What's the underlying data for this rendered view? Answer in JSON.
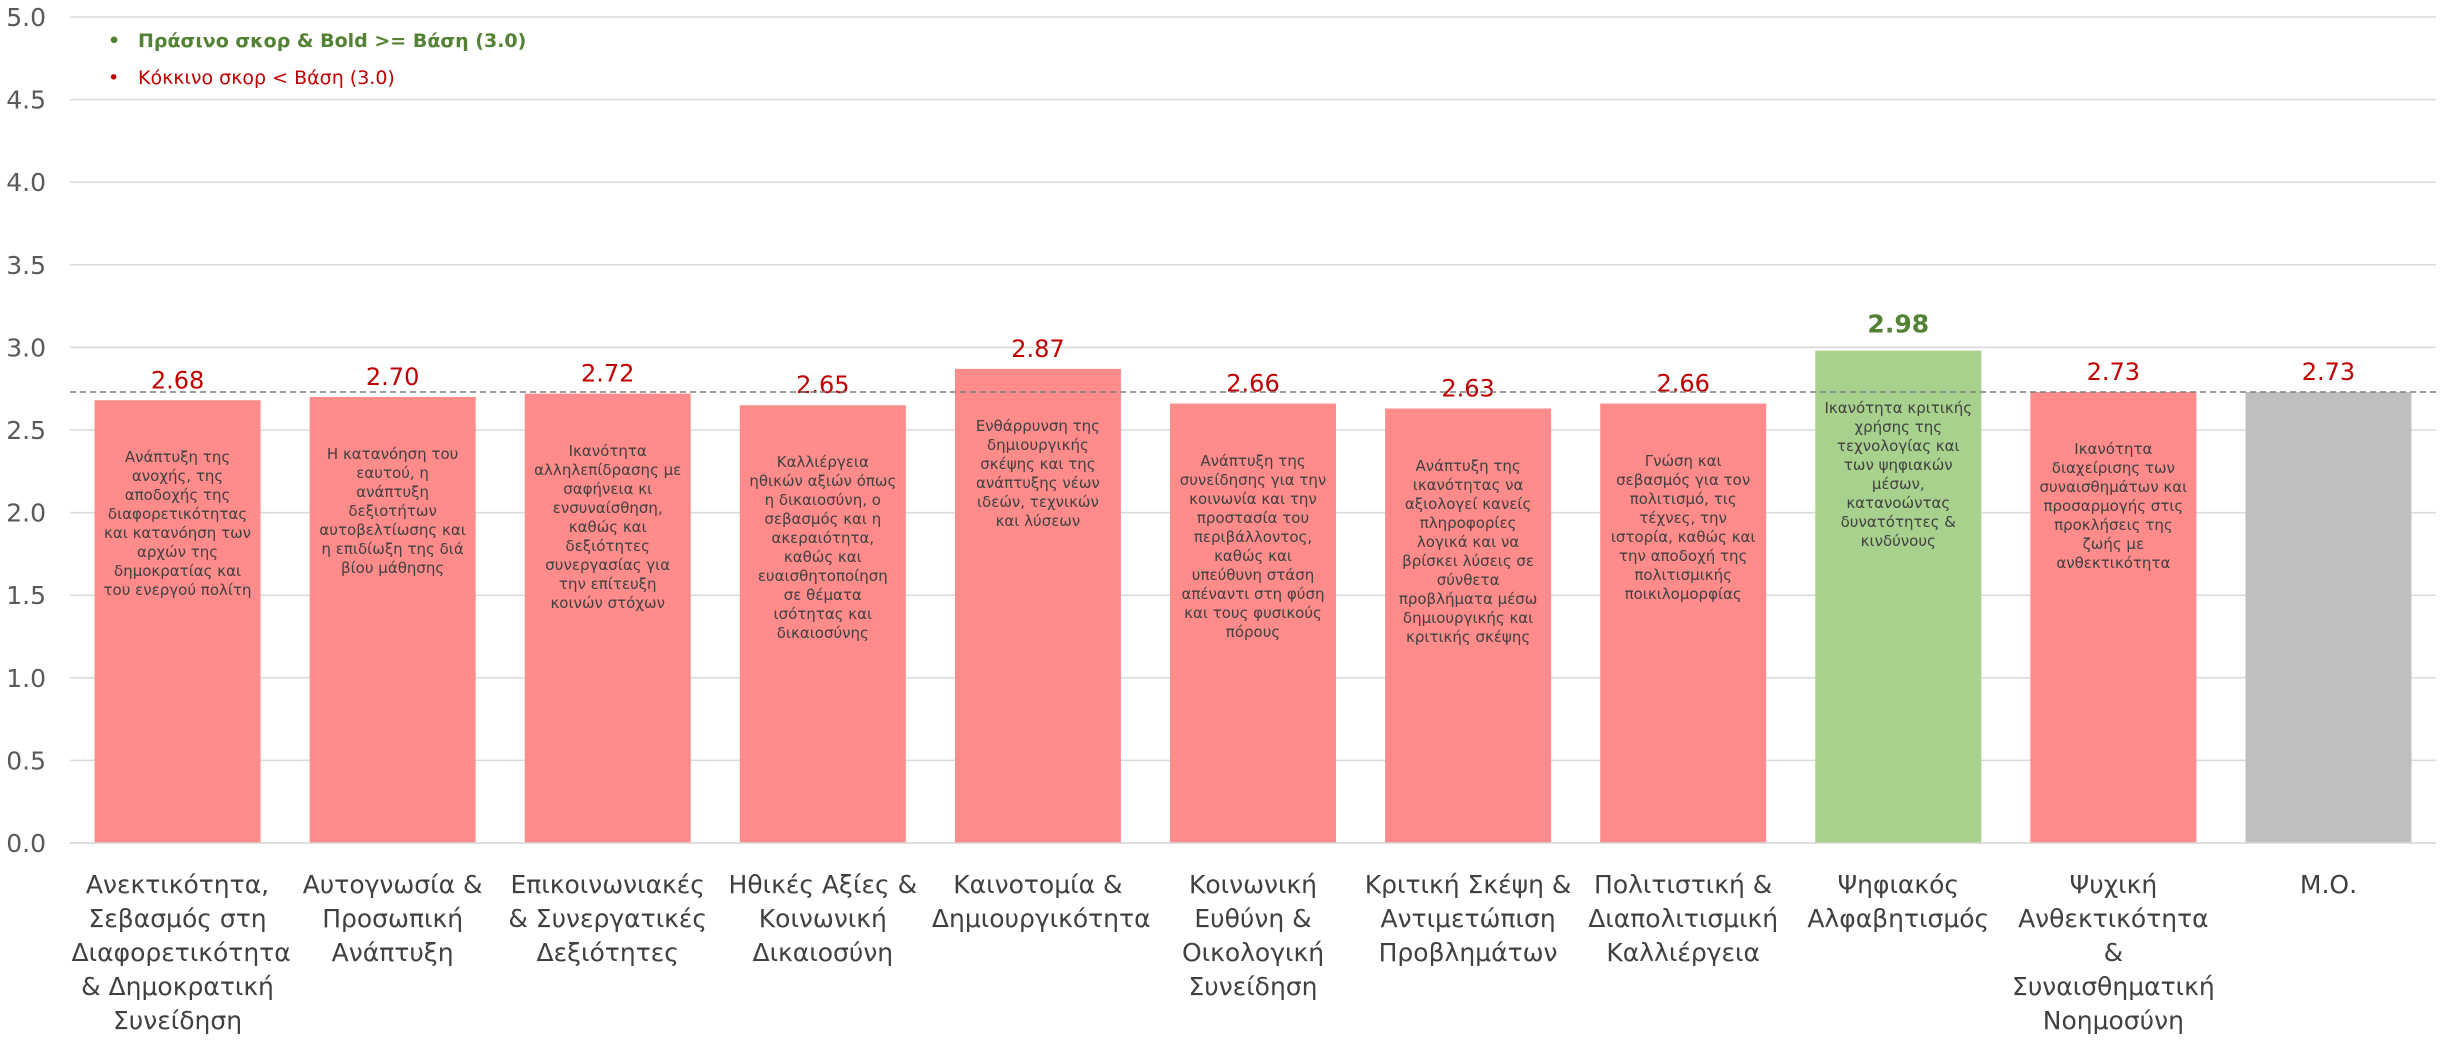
{
  "chart_data": {
    "type": "bar",
    "legend": [
      "Πράσινο σκορ & Bold >= Βάση (3.0)",
      "Κόκκινο σκορ < Βάση (3.0)"
    ],
    "legend_colors": [
      "#548235",
      "#c00000"
    ],
    "categories": [
      "Ανεκτικότητα, Σεβασμός στη Διαφορετικότητα & Δημοκρατική Συνείδηση",
      "Αυτογνωσία & Προσωπική Ανάπτυξη",
      "Επικοινωνιακές & Συνεργατικές Δεξιότητες",
      "Ηθικές Αξίες & Κοινωνική Δικαιοσύνη",
      "Καινοτομία & Δημιουργικότητα",
      "Κοινωνική Ευθύνη & Οικολογική Συνείδηση",
      "Κριτική Σκέψη & Αντιμετώπιση Προβλημάτων",
      "Πολιτιστική & Διαπολιτισμική Καλλιέργεια",
      "Ψηφιακός Αλφαβητισμός",
      "Ψυχική Ανθεκτικότητα & Συναισθηματική Νοημοσύνη",
      "Μ.Ο."
    ],
    "descriptions": [
      "Ανάπτυξη της ανοχής, της αποδοχής της διαφορετικότητας και κατανόηση των αρχών της δημοκρατίας και του ενεργού πολίτη",
      "Η κατανόηση του εαυτού, η ανάπτυξη δεξιοτήτων αυτοβελτίωσης και η επιδίωξη της διά βίου μάθησης",
      "Ικανότητα αλληλεπίδρασης με σαφήνεια κι ενσυναίσθηση, καθώς και δεξιότητες συνεργασίας για την επίτευξη κοινών στόχων",
      "Καλλιέργεια ηθικών αξιών όπως η δικαιοσύνη, ο σεβασμός και η ακεραιότητα, καθώς και ευαισθητοποίηση σε θέματα ισότητας και δικαιοσύνης",
      "Ενθάρρυνση της δημιουργικής σκέψης και της ανάπτυξης νέων ιδεών, τεχνικών και λύσεων",
      "Ανάπτυξη της συνείδησης για την κοινωνία και την προστασία του περιβάλλοντος, καθώς και υπεύθυνη στάση απέναντι στη φύση και τους φυσικούς πόρους",
      "Ανάπτυξη της ικανότητας να αξιολογεί κανείς πληροφορίες λογικά και να βρίσκει λύσεις σε σύνθετα προβλήματα μέσω δημιουργικής και κριτικής σκέψης",
      "Γνώση και σεβασμός για τον πολιτισμό, τις τέχνες, την ιστορία, καθώς και την αποδοχή της πολιτισμικής ποικιλομορφίας",
      "Ικανότητα κριτικής χρήσης της τεχνολογίας και των ψηφιακών μέσων, κατανοώντας δυνατότητες & κινδύνους",
      "Ικανότητα διαχείρισης των συναισθημάτων και προσαρμογής στις προκλήσεις της ζωής με ανθεκτικότητα",
      null
    ],
    "values": [
      2.68,
      2.7,
      2.72,
      2.65,
      2.87,
      2.66,
      2.63,
      2.66,
      2.98,
      2.73,
      2.73
    ],
    "value_labels": [
      "2.68",
      "2.70",
      "2.72",
      "2.65",
      "2.87",
      "2.66",
      "2.63",
      "2.66",
      "2.98",
      "2.73",
      "2.73"
    ],
    "colors": [
      "#ff8b8b",
      "#ff8b8b",
      "#ff8b8b",
      "#ff8b8b",
      "#ff8b8b",
      "#ff8b8b",
      "#ff8b8b",
      "#ff8b8b",
      "#a9d18e",
      "#ff8b8b",
      "#bfbfbf"
    ],
    "label_colors": [
      "#c00000",
      "#c00000",
      "#c00000",
      "#c00000",
      "#c00000",
      "#c00000",
      "#c00000",
      "#c00000",
      "#548235",
      "#c00000",
      "#c00000"
    ],
    "reference_line": 2.73,
    "ylim": [
      0,
      5
    ],
    "yticks": [
      {
        "value": 0,
        "label": "0.0"
      },
      0.5,
      {
        "value": 1,
        "label": "1.0"
      },
      1.5,
      {
        "value": 2,
        "label": "2.0"
      },
      2.5,
      {
        "value": 3,
        "label": "3.0"
      },
      3.5,
      {
        "value": 4,
        "label": "4.0"
      },
      4.5,
      {
        "value": 5,
        "label": "5.0"
      }
    ],
    "grid": true
  }
}
